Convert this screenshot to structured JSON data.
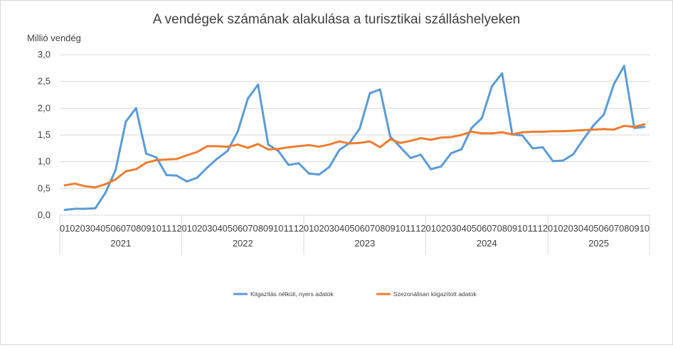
{
  "chart_data": {
    "type": "line",
    "title": "A vendégek számának alakulása a turisztikai szálláshelyeken",
    "ylabel": "Millió vendég",
    "ylim": [
      0,
      3
    ],
    "yticks": [
      "0,0",
      "0,5",
      "1,0",
      "1,5",
      "2,0",
      "2,5",
      "3,0"
    ],
    "grid": true,
    "legend_position": "bottom",
    "years": [
      {
        "label": "2021",
        "months": 12
      },
      {
        "label": "2022",
        "months": 12
      },
      {
        "label": "2023",
        "months": 12
      },
      {
        "label": "2024",
        "months": 12
      },
      {
        "label": "2025",
        "months": 10
      }
    ],
    "month_labels": [
      "01",
      "02",
      "03",
      "04",
      "05",
      "06",
      "07",
      "08",
      "09",
      "10",
      "11",
      "12"
    ],
    "series": [
      {
        "name": "Kiigazítás nélküli, nyers adatok",
        "color": "#5b9bd5",
        "values": [
          0.1,
          0.12,
          0.12,
          0.13,
          0.42,
          0.85,
          1.75,
          2.0,
          1.15,
          1.08,
          0.75,
          0.74,
          0.63,
          0.7,
          0.89,
          1.06,
          1.2,
          1.56,
          2.18,
          2.44,
          1.32,
          1.2,
          0.94,
          0.97,
          0.78,
          0.76,
          0.9,
          1.22,
          1.35,
          1.62,
          2.28,
          2.35,
          1.47,
          1.27,
          1.07,
          1.13,
          0.86,
          0.91,
          1.16,
          1.23,
          1.63,
          1.81,
          2.41,
          2.65,
          1.51,
          1.49,
          1.25,
          1.27,
          1.01,
          1.02,
          1.14,
          1.42,
          1.68,
          1.88,
          2.45,
          2.79,
          1.63,
          1.65
        ]
      },
      {
        "name": "Szezonálisan kiigazított adatok",
        "color": "#ed7d31",
        "values": [
          0.56,
          0.59,
          0.54,
          0.52,
          0.58,
          0.67,
          0.82,
          0.86,
          0.98,
          1.03,
          1.04,
          1.05,
          1.12,
          1.18,
          1.29,
          1.29,
          1.28,
          1.32,
          1.26,
          1.33,
          1.23,
          1.24,
          1.27,
          1.29,
          1.31,
          1.28,
          1.32,
          1.38,
          1.34,
          1.35,
          1.38,
          1.27,
          1.42,
          1.35,
          1.39,
          1.44,
          1.41,
          1.45,
          1.46,
          1.5,
          1.56,
          1.53,
          1.53,
          1.55,
          1.51,
          1.55,
          1.56,
          1.56,
          1.57,
          1.57,
          1.58,
          1.59,
          1.6,
          1.61,
          1.6,
          1.67,
          1.65,
          1.7
        ]
      }
    ]
  }
}
